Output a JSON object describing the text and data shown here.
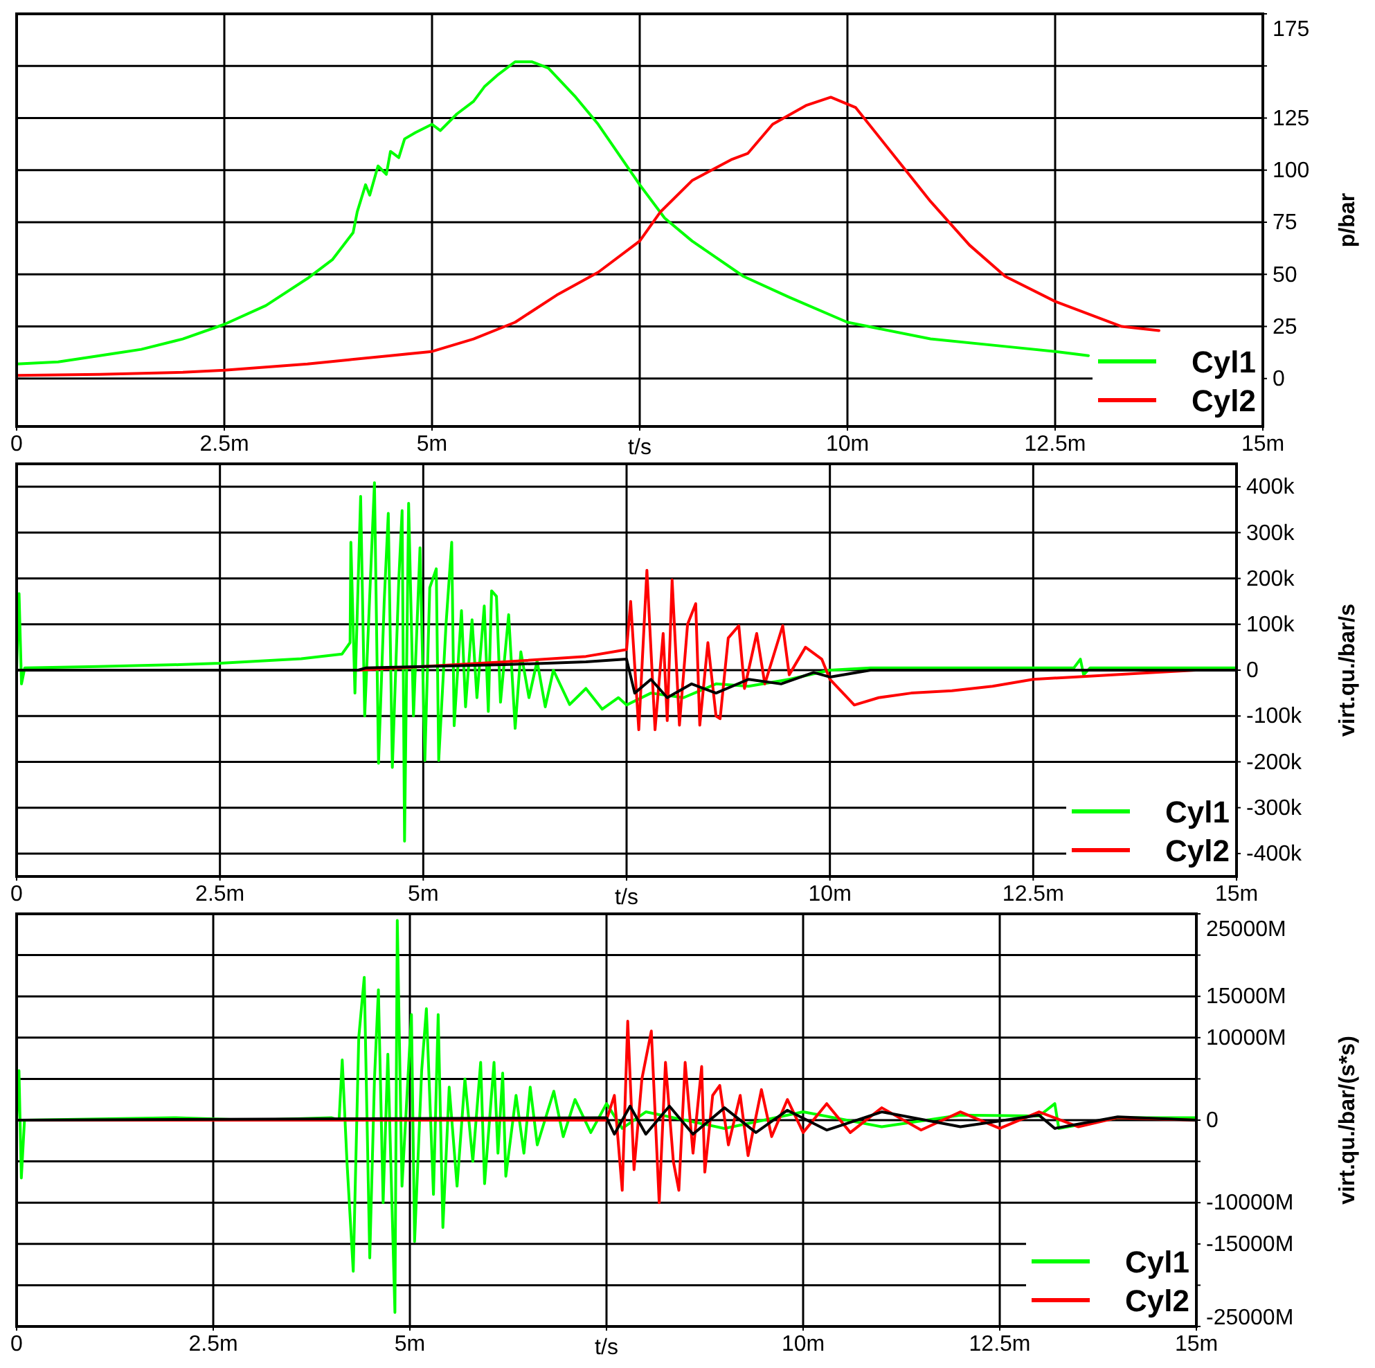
{
  "chart_data": [
    {
      "type": "line",
      "xlabel": "t/s",
      "ylabel": "p/bar",
      "xlim": [
        0,
        15
      ],
      "ylim": [
        -23,
        175
      ],
      "xticks": [
        {
          "value": 0,
          "label": "0"
        },
        {
          "value": 2.5,
          "label": "2.5m"
        },
        {
          "value": 5,
          "label": "5m"
        },
        {
          "value": 7.5,
          "label": null
        },
        {
          "value": 10,
          "label": "10m"
        },
        {
          "value": 12.5,
          "label": "12.5m"
        },
        {
          "value": 15,
          "label": "15m"
        }
      ],
      "yticks": [
        175,
        {
          "value": 150,
          "label": null
        },
        125,
        100,
        75,
        50,
        25,
        0
      ],
      "grid": true,
      "legend": "bottom right",
      "marker": "none",
      "line_style": "solid",
      "series": [
        {
          "name": "Cyl1",
          "color": "#00ff00",
          "x": [
            0,
            0.5,
            1,
            1.5,
            2,
            2.5,
            3,
            3.5,
            3.8,
            4.05,
            4.1,
            4.2,
            4.25,
            4.35,
            4.45,
            4.5,
            4.6,
            4.67,
            4.8,
            5,
            5.1,
            5.3,
            5.5,
            5.63,
            5.8,
            6,
            6.2,
            6.4,
            6.73,
            7,
            7.5,
            7.8,
            8.13,
            8.75,
            9.3,
            10,
            11,
            12,
            12.5,
            12.9
          ],
          "values": [
            7,
            8,
            11,
            14,
            19,
            26,
            35,
            48,
            57,
            70,
            80,
            93,
            88,
            102,
            98,
            109,
            106,
            115,
            118,
            122,
            119,
            127,
            133,
            140,
            146,
            152,
            152,
            149,
            135,
            122,
            93,
            77,
            66,
            49,
            39,
            27,
            19,
            15,
            13,
            11
          ]
        },
        {
          "name": "Cyl2",
          "color": "#ff0000",
          "x": [
            0,
            1,
            2,
            2.5,
            3.5,
            4,
            4.5,
            5,
            5.5,
            6,
            6.5,
            7,
            7.5,
            7.75,
            8.13,
            8.6,
            8.8,
            9.1,
            9.5,
            9.8,
            10.1,
            10.6,
            11,
            11.47,
            11.9,
            12.5,
            13.3,
            13.75
          ],
          "values": [
            1.5,
            2,
            3,
            4,
            7,
            9,
            11,
            13,
            19,
            27,
            40,
            51,
            66,
            80,
            95,
            105,
            108,
            122,
            131,
            135,
            130,
            105,
            85,
            64,
            49,
            37,
            25,
            23
          ]
        }
      ]
    },
    {
      "type": "line",
      "xlabel": "t/s",
      "ylabel": "virt.qu./bar/s",
      "xlim": [
        0,
        15
      ],
      "ylim": [
        -450000,
        450000
      ],
      "xticks": [
        {
          "value": 0,
          "label": "0"
        },
        {
          "value": 2.5,
          "label": "2.5m"
        },
        {
          "value": 5,
          "label": "5m"
        },
        {
          "value": 7.5,
          "label": null
        },
        {
          "value": 10,
          "label": "10m"
        },
        {
          "value": 12.5,
          "label": "12.5m"
        },
        {
          "value": 15,
          "label": "15m"
        }
      ],
      "yticks": [
        {
          "value": 400000,
          "label": "400k"
        },
        {
          "value": 300000,
          "label": "300k"
        },
        {
          "value": 200000,
          "label": "200k"
        },
        {
          "value": 100000,
          "label": "100k"
        },
        0,
        {
          "value": -100000,
          "label": "-100k"
        },
        {
          "value": -200000,
          "label": "-200k"
        },
        {
          "value": -300000,
          "label": "-300k"
        },
        {
          "value": -400000,
          "label": "-400k"
        }
      ],
      "grid": true,
      "legend": "bottom right",
      "marker": "none",
      "line_style": "solid",
      "series": [
        {
          "name": "Cyl1",
          "color": "#00ff00",
          "x": [
            0,
            0.03,
            0.06,
            0.1,
            1,
            2,
            2.5,
            3,
            3.5,
            4,
            4.1,
            4.11,
            4.16,
            4.23,
            4.28,
            4.4,
            4.45,
            4.52,
            4.57,
            4.62,
            4.7,
            4.74,
            4.77,
            4.82,
            4.88,
            4.96,
            5.02,
            5.08,
            5.16,
            5.19,
            5.28,
            5.35,
            5.38,
            5.47,
            5.52,
            5.6,
            5.66,
            5.75,
            5.8,
            5.84,
            5.9,
            5.95,
            6.05,
            6.13,
            6.2,
            6.3,
            6.4,
            6.5,
            6.6,
            6.8,
            7,
            7.2,
            7.4,
            7.5,
            7.8,
            8.2,
            8.6,
            9,
            9.5,
            10,
            10.5,
            11,
            12,
            13,
            13.08,
            13.12,
            13.2,
            14,
            15
          ],
          "values": [
            0,
            167000.0,
            -30000.0,
            5000.0,
            8000.0,
            12000.0,
            15000.0,
            20000.0,
            25000.0,
            35000.0,
            60000.0,
            279000.0,
            -50000.0,
            379000.0,
            -100000.0,
            409000.0,
            -203000.0,
            150000.0,
            342000.0,
            -212000.0,
            200000.0,
            348000.0,
            -373000.0,
            364000.0,
            -100000.0,
            267000.0,
            -197000.0,
            180000.0,
            221000.0,
            -197000.0,
            100000.0,
            279000.0,
            -121000.0,
            130000.0,
            -80000.0,
            110000.0,
            -60000.0,
            140000.0,
            -90000.0,
            173000.0,
            161000.0,
            -70000.0,
            121000.0,
            -127000.0,
            40000.0,
            -60000.0,
            20000.0,
            -80000.0,
            0,
            -75000.0,
            -40000.0,
            -85000.0,
            -60000.0,
            -76000.0,
            -50000.0,
            -60000.0,
            -30000.0,
            -35000.0,
            -20000.0,
            0,
            5000.0,
            5000.0,
            5000.0,
            5000.0,
            24000.0,
            -10000.0,
            5000.0,
            5000.0,
            5000.0
          ]
        },
        {
          "name": "Cyl2",
          "color": "#ff0000",
          "x": [
            0,
            4.2,
            5,
            6,
            7,
            7.5,
            7.55,
            7.65,
            7.75,
            7.85,
            7.95,
            8,
            8.06,
            8.15,
            8.25,
            8.35,
            8.4,
            8.5,
            8.6,
            8.65,
            8.75,
            8.88,
            8.95,
            9.1,
            9.2,
            9.42,
            9.5,
            9.7,
            9.9,
            10,
            10.3,
            10.6,
            11,
            11.5,
            12,
            12.5,
            13,
            14,
            14.5,
            15
          ],
          "values": [
            0,
            0,
            8000.0,
            18000.0,
            30000.0,
            45000.0,
            150000.0,
            -130000.0,
            218000.0,
            -130000.0,
            80000.0,
            -110000.0,
            197000.0,
            -120000.0,
            100000.0,
            145000.0,
            -120000.0,
            60000.0,
            -100000.0,
            -106000.0,
            70000.0,
            97000.0,
            -40000.0,
            80000.0,
            -30000.0,
            97000.0,
            -10000.0,
            50000.0,
            24000.0,
            -20000.0,
            -76000.0,
            -60000.0,
            -50000.0,
            -45000.0,
            -35000.0,
            -20000.0,
            -15000.0,
            -5000.0,
            0,
            0
          ]
        },
        {
          "color": "#000000",
          "x": [
            0,
            4.2,
            4.3,
            5,
            6,
            7,
            7.5,
            7.6,
            7.8,
            8,
            8.3,
            8.6,
            9,
            9.4,
            9.8,
            10,
            10.5,
            15
          ],
          "values": [
            0,
            0,
            5000.0,
            8000.0,
            12000.0,
            18000.0,
            24000.0,
            -50000.0,
            -20000.0,
            -60000.0,
            -30000.0,
            -50000.0,
            -20000.0,
            -30000.0,
            -5000.0,
            -15000.0,
            0,
            0
          ]
        }
      ]
    },
    {
      "type": "line",
      "xlabel": "t/s",
      "ylabel": "virt.qu./bar/(s*s)",
      "xlim": [
        0,
        15
      ],
      "ylim": [
        -25000000000.0,
        25000000000.0
      ],
      "xticks": [
        {
          "value": 0,
          "label": "0"
        },
        {
          "value": 2.5,
          "label": "2.5m"
        },
        {
          "value": 5,
          "label": "5m"
        },
        {
          "value": 7.5,
          "label": null
        },
        {
          "value": 10,
          "label": "10m"
        },
        {
          "value": 12.5,
          "label": "12.5m"
        },
        {
          "value": 15,
          "label": "15m"
        }
      ],
      "yticks": [
        {
          "value": 25000000000.0,
          "label": "25000M"
        },
        {
          "value": 20000000000.0,
          "label": null
        },
        {
          "value": 15000000000.0,
          "label": "15000M"
        },
        {
          "value": 10000000000.0,
          "label": "10000M"
        },
        {
          "value": 5000000000.0,
          "label": null
        },
        0,
        {
          "value": -5000000000.0,
          "label": null
        },
        {
          "value": -10000000000.0,
          "label": "-10000M"
        },
        {
          "value": -15000000000.0,
          "label": "-15000M"
        },
        {
          "value": -20000000000.0,
          "label": null
        },
        {
          "value": -25000000000.0,
          "label": "-25000M"
        }
      ],
      "grid": true,
      "legend": "bottom right",
      "marker": "none",
      "line_style": "solid",
      "series": [
        {
          "name": "Cyl1",
          "color": "#00ff00",
          "x": [
            0,
            0.03,
            0.06,
            0.1,
            2,
            3,
            4,
            4.1,
            4.14,
            4.2,
            4.28,
            4.35,
            4.42,
            4.49,
            4.55,
            4.6,
            4.66,
            4.72,
            4.81,
            4.84,
            4.9,
            5.02,
            5.06,
            5.15,
            5.21,
            5.3,
            5.36,
            5.42,
            5.5,
            5.6,
            5.7,
            5.8,
            5.9,
            5.95,
            6.07,
            6.12,
            6.18,
            6.22,
            6.35,
            6.45,
            6.53,
            6.62,
            6.83,
            6.95,
            7.1,
            7.3,
            7.5,
            7.7,
            8,
            9,
            10,
            11,
            12,
            13,
            13.2,
            13.25,
            14,
            15
          ],
          "values": [
            0,
            6000000000.0,
            -7000000000.0,
            0,
            300000000.0,
            0,
            300000000.0,
            0,
            7300000000.0,
            -5000000000.0,
            -18300000000.0,
            10000000000.0,
            17300000000.0,
            -16700000000.0,
            5000000000.0,
            15800000000.0,
            -10000000000.0,
            8000000000.0,
            -23300000000.0,
            24200000000.0,
            -8000000000.0,
            12800000000.0,
            -14700000000.0,
            6000000000.0,
            13500000000.0,
            -9000000000.0,
            12800000000.0,
            -13000000000.0,
            4000000000.0,
            -8000000000.0,
            5000000000.0,
            -5000000000.0,
            7000000000.0,
            -7700000000.0,
            7000000000.0,
            -4000000000.0,
            5700000000.0,
            -6800000000.0,
            3000000000.0,
            -4000000000.0,
            4000000000.0,
            -3000000000.0,
            3500000000.0,
            -2000000000.0,
            2500000000.0,
            -1500000000.0,
            2000000000.0,
            -1000000000.0,
            1000000000.0,
            -1000000000.0,
            1000000000.0,
            -800000000.0,
            600000000.0,
            500000000.0,
            2000000000.0,
            -1000000000.0,
            300000000.0,
            300000000.0
          ]
        },
        {
          "name": "Cyl2",
          "color": "#ff0000",
          "x": [
            0,
            7.5,
            7.6,
            7.7,
            7.77,
            7.85,
            7.95,
            8.07,
            8.17,
            8.25,
            8.35,
            8.42,
            8.5,
            8.6,
            8.71,
            8.75,
            8.85,
            8.94,
            9.05,
            9.2,
            9.3,
            9.47,
            9.6,
            9.8,
            10,
            10.3,
            10.6,
            11,
            11.5,
            12,
            12.5,
            13,
            13.5,
            14,
            15
          ],
          "values": [
            0,
            0,
            3000000000.0,
            -8500000000.0,
            12000000000.0,
            -6000000000.0,
            5000000000.0,
            10800000000.0,
            -10000000000.0,
            7000000000.0,
            -5000000000.0,
            -8500000000.0,
            7000000000.0,
            -4000000000.0,
            6500000000.0,
            -6300000000.0,
            3000000000.0,
            4200000000.0,
            -3000000000.0,
            3000000000.0,
            -4300000000.0,
            3700000000.0,
            -2000000000.0,
            2500000000.0,
            -1500000000.0,
            2000000000.0,
            -1500000000.0,
            1500000000.0,
            -1200000000.0,
            1000000000.0,
            -1000000000.0,
            1000000000.0,
            -800000000.0,
            300000000.0,
            0
          ]
        },
        {
          "color": "#000000",
          "x": [
            0,
            7.5,
            7.6,
            7.8,
            8,
            8.3,
            8.6,
            9,
            9.4,
            9.8,
            10.3,
            11,
            12,
            13,
            13.2,
            14,
            15
          ],
          "values": [
            0,
            300000000.0,
            -1700000000.0,
            1700000000.0,
            -1700000000.0,
            1700000000.0,
            -1700000000.0,
            1500000000.0,
            -1500000000.0,
            1200000000.0,
            -1200000000.0,
            1000000000.0,
            -800000000.0,
            600000000.0,
            -1000000000.0,
            400000000.0,
            0
          ]
        }
      ]
    }
  ]
}
